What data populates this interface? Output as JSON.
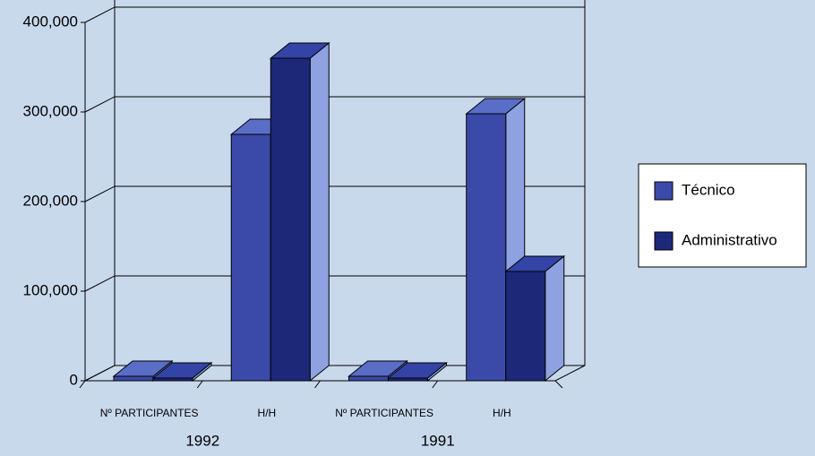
{
  "chart_data": {
    "type": "bar3d",
    "categories": [
      "Nº PARTICIPANTES",
      "H/H",
      "Nº PARTICIPANTES",
      "H/H"
    ],
    "groups": [
      "1992",
      "1991"
    ],
    "series": [
      {
        "name": "Técnico",
        "color": "#3b4aa8",
        "values": [
          5000,
          275000,
          5000,
          298000
        ]
      },
      {
        "name": "Administrativo",
        "color": "#1e2878",
        "values": [
          3000,
          360000,
          3000,
          122000
        ]
      }
    ],
    "ylim": [
      0,
      400000
    ],
    "yticks": [
      0,
      {
        "value": 100000,
        "label": "100,000"
      },
      {
        "value": 200000,
        "label": "200,000"
      },
      {
        "value": 300000,
        "label": "300,000"
      },
      {
        "value": 400000,
        "label": "400,000"
      }
    ],
    "grid": true,
    "legend": "right"
  }
}
